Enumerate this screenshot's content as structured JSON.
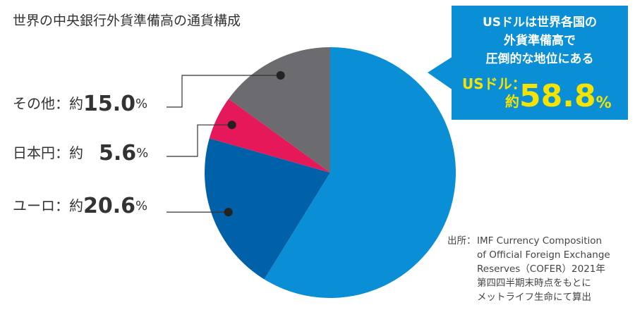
{
  "chart_data": {
    "type": "pie",
    "title": "世界の中央銀行外貨準備高の通貨構成",
    "categories": [
      "USドル",
      "ユーロ",
      "日本円",
      "その他"
    ],
    "values": [
      58.8,
      20.6,
      5.6,
      15.0
    ],
    "value_labels": [
      "58.8",
      "20.6",
      "5.6",
      "15.0"
    ],
    "colors": [
      "#0a8fd6",
      "#0060a8",
      "#e5185a",
      "#6b6b70"
    ],
    "label_separator": "：",
    "approx_prefix": "約",
    "unit": "%",
    "callout": [
      "USドルは世界各国の",
      "外貨準備高で",
      "圧倒的な地位にある"
    ],
    "source_label": "出所：",
    "source": [
      "IMF Currency Composition",
      "of Official Foreign Exchange",
      "Reserves（COFER）2021年",
      "第四四半期末時点をもとに",
      "メットライフ生命にて算出"
    ]
  }
}
